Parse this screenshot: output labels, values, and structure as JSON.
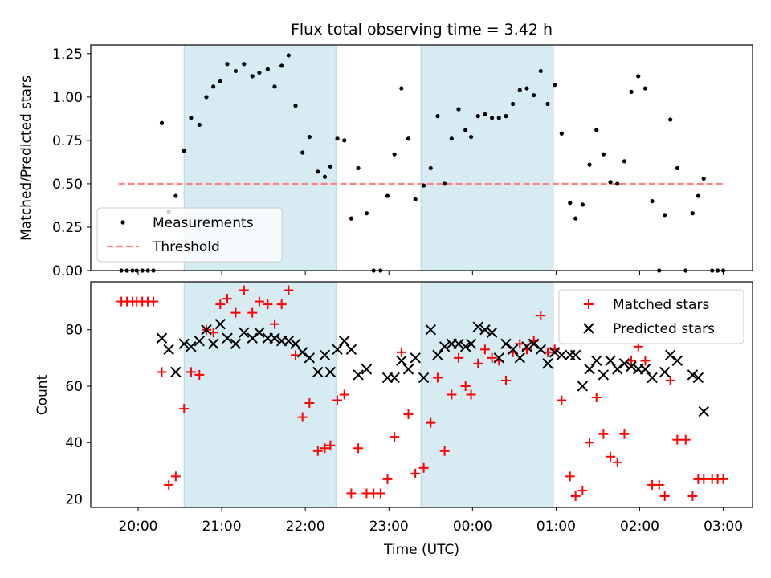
{
  "chart_data": [
    {
      "type": "scatter",
      "title": "Flux total observing time = 3.42 h",
      "xlabel": "",
      "ylabel": "Matched/Predicted stars",
      "xlim": [
        "19:26",
        "03:21"
      ],
      "ylim": [
        0,
        1.3
      ],
      "yticks": [
        "0.00",
        "0.25",
        "0.50",
        "0.75",
        "1.00",
        "1.25"
      ],
      "grid": false,
      "legend_position": "lower-left",
      "shaded_intervals": [
        [
          "20:33",
          "22:22"
        ],
        [
          "23:23",
          "00:58"
        ]
      ],
      "series": [
        {
          "name": "Measurements",
          "marker": "dot",
          "color": "#000000",
          "points": [
            [
              "19:48",
              0.0
            ],
            [
              "19:52",
              0.0
            ],
            [
              "19:56",
              0.0
            ],
            [
              "19:59",
              0.0
            ],
            [
              "20:03",
              0.0
            ],
            [
              "20:07",
              0.0
            ],
            [
              "20:11",
              0.0
            ],
            [
              "20:17",
              0.85
            ],
            [
              "20:22",
              0.34
            ],
            [
              "20:27",
              0.43
            ],
            [
              "20:33",
              0.69
            ],
            [
              "20:38",
              0.88
            ],
            [
              "20:44",
              0.84
            ],
            [
              "20:49",
              1.0
            ],
            [
              "20:54",
              1.06
            ],
            [
              "20:59",
              1.09
            ],
            [
              "21:04",
              1.19
            ],
            [
              "21:10",
              1.15
            ],
            [
              "21:16",
              1.19
            ],
            [
              "21:22",
              1.12
            ],
            [
              "21:27",
              1.14
            ],
            [
              "21:33",
              1.16
            ],
            [
              "21:38",
              1.06
            ],
            [
              "21:43",
              1.18
            ],
            [
              "21:48",
              1.24
            ],
            [
              "21:53",
              0.95
            ],
            [
              "21:58",
              0.68
            ],
            [
              "22:03",
              0.77
            ],
            [
              "22:09",
              0.57
            ],
            [
              "22:14",
              0.54
            ],
            [
              "22:18",
              0.6
            ],
            [
              "22:23",
              0.76
            ],
            [
              "22:28",
              0.75
            ],
            [
              "22:33",
              0.3
            ],
            [
              "22:38",
              0.59
            ],
            [
              "22:44",
              0.33
            ],
            [
              "22:49",
              0.0
            ],
            [
              "22:54",
              0.0
            ],
            [
              "22:59",
              0.43
            ],
            [
              "23:04",
              0.67
            ],
            [
              "23:09",
              1.05
            ],
            [
              "23:14",
              0.76
            ],
            [
              "23:19",
              0.41
            ],
            [
              "23:25",
              0.49
            ],
            [
              "23:30",
              0.59
            ],
            [
              "23:35",
              0.89
            ],
            [
              "23:40",
              0.5
            ],
            [
              "23:45",
              0.76
            ],
            [
              "23:50",
              0.93
            ],
            [
              "23:55",
              0.81
            ],
            [
              "23:59",
              0.77
            ],
            [
              "00:04",
              0.89
            ],
            [
              "00:09",
              0.9
            ],
            [
              "00:14",
              0.88
            ],
            [
              "00:19",
              0.88
            ],
            [
              "00:24",
              0.89
            ],
            [
              "00:29",
              0.96
            ],
            [
              "00:34",
              1.04
            ],
            [
              "00:39",
              1.05
            ],
            [
              "00:44",
              1.01
            ],
            [
              "00:49",
              1.15
            ],
            [
              "00:54",
              0.96
            ],
            [
              "00:59",
              1.07
            ],
            [
              "01:04",
              0.79
            ],
            [
              "01:10",
              0.39
            ],
            [
              "01:14",
              0.3
            ],
            [
              "01:19",
              0.38
            ],
            [
              "01:24",
              0.61
            ],
            [
              "01:29",
              0.81
            ],
            [
              "01:34",
              0.67
            ],
            [
              "01:39",
              0.51
            ],
            [
              "01:44",
              0.5
            ],
            [
              "01:49",
              0.63
            ],
            [
              "01:54",
              1.03
            ],
            [
              "01:59",
              1.12
            ],
            [
              "02:04",
              1.05
            ],
            [
              "02:09",
              0.4
            ],
            [
              "02:14",
              0.0
            ],
            [
              "02:18",
              0.32
            ],
            [
              "02:22",
              0.87
            ],
            [
              "02:27",
              0.59
            ],
            [
              "02:33",
              0.0
            ],
            [
              "02:38",
              0.33
            ],
            [
              "02:42",
              0.43
            ],
            [
              "02:46",
              0.53
            ],
            [
              "02:52",
              0.0
            ],
            [
              "02:56",
              0.0
            ],
            [
              "03:00",
              0.0
            ]
          ]
        },
        {
          "name": "Threshold",
          "type": "line",
          "style": "dashed",
          "color": "#ff8080",
          "points": [
            [
              "19:46",
              0.5
            ],
            [
              "03:00",
              0.5
            ]
          ]
        }
      ]
    },
    {
      "type": "scatter",
      "title": "",
      "xlabel": "Time (UTC)",
      "ylabel": "Count",
      "xlim": [
        "19:26",
        "03:21"
      ],
      "ylim": [
        17,
        97
      ],
      "xticks": [
        "20:00",
        "21:00",
        "22:00",
        "23:00",
        "00:00",
        "01:00",
        "02:00",
        "03:00"
      ],
      "yticks": [
        "20",
        "40",
        "60",
        "80"
      ],
      "grid": false,
      "legend_position": "top-right",
      "shaded_intervals": [
        [
          "20:33",
          "22:22"
        ],
        [
          "23:23",
          "00:58"
        ]
      ],
      "series": [
        {
          "name": "Matched stars",
          "marker": "plus",
          "color": "#ff0000",
          "points": [
            [
              "19:48",
              90
            ],
            [
              "19:52",
              90
            ],
            [
              "19:56",
              90
            ],
            [
              "19:59",
              90
            ],
            [
              "20:03",
              90
            ],
            [
              "20:07",
              90
            ],
            [
              "20:11",
              90
            ],
            [
              "20:17",
              65
            ],
            [
              "20:22",
              25
            ],
            [
              "20:27",
              28
            ],
            [
              "20:33",
              52
            ],
            [
              "20:38",
              65
            ],
            [
              "20:44",
              64
            ],
            [
              "20:49",
              80
            ],
            [
              "20:54",
              79
            ],
            [
              "20:59",
              89
            ],
            [
              "21:04",
              91
            ],
            [
              "21:10",
              86
            ],
            [
              "21:16",
              94
            ],
            [
              "21:22",
              86
            ],
            [
              "21:27",
              90
            ],
            [
              "21:33",
              89
            ],
            [
              "21:38",
              82
            ],
            [
              "21:43",
              89
            ],
            [
              "21:48",
              94
            ],
            [
              "21:53",
              71
            ],
            [
              "21:58",
              49
            ],
            [
              "22:03",
              54
            ],
            [
              "22:09",
              37
            ],
            [
              "22:14",
              38
            ],
            [
              "22:18",
              39
            ],
            [
              "22:23",
              55
            ],
            [
              "22:28",
              57
            ],
            [
              "22:33",
              22
            ],
            [
              "22:38",
              38
            ],
            [
              "22:44",
              22
            ],
            [
              "22:49",
              22
            ],
            [
              "22:54",
              22
            ],
            [
              "22:59",
              27
            ],
            [
              "23:04",
              42
            ],
            [
              "23:09",
              72
            ],
            [
              "23:14",
              50
            ],
            [
              "23:19",
              29
            ],
            [
              "23:25",
              31
            ],
            [
              "23:30",
              47
            ],
            [
              "23:35",
              63
            ],
            [
              "23:40",
              37
            ],
            [
              "23:45",
              57
            ],
            [
              "23:50",
              70
            ],
            [
              "23:55",
              60
            ],
            [
              "23:59",
              57
            ],
            [
              "00:04",
              68
            ],
            [
              "00:09",
              73
            ],
            [
              "00:14",
              70
            ],
            [
              "00:19",
              69
            ],
            [
              "00:24",
              62
            ],
            [
              "00:29",
              72
            ],
            [
              "00:34",
              75
            ],
            [
              "00:39",
              73
            ],
            [
              "00:44",
              76
            ],
            [
              "00:49",
              85
            ],
            [
              "00:54",
              72
            ],
            [
              "00:59",
              73
            ],
            [
              "01:04",
              55
            ],
            [
              "01:10",
              28
            ],
            [
              "01:14",
              21
            ],
            [
              "01:19",
              23
            ],
            [
              "01:24",
              40
            ],
            [
              "01:29",
              56
            ],
            [
              "01:34",
              43
            ],
            [
              "01:39",
              35
            ],
            [
              "01:44",
              33
            ],
            [
              "01:49",
              43
            ],
            [
              "01:54",
              69
            ],
            [
              "01:59",
              74
            ],
            [
              "02:04",
              69
            ],
            [
              "02:09",
              25
            ],
            [
              "02:14",
              25
            ],
            [
              "02:18",
              21
            ],
            [
              "02:22",
              62
            ],
            [
              "02:27",
              41
            ],
            [
              "02:33",
              41
            ],
            [
              "02:38",
              21
            ],
            [
              "02:42",
              27
            ],
            [
              "02:46",
              27
            ],
            [
              "02:52",
              27
            ],
            [
              "02:56",
              27
            ],
            [
              "03:00",
              27
            ]
          ]
        },
        {
          "name": "Predicted stars",
          "marker": "x",
          "color": "#000000",
          "points": [
            [
              "20:17",
              77
            ],
            [
              "20:22",
              73
            ],
            [
              "20:27",
              65
            ],
            [
              "20:33",
              75
            ],
            [
              "20:38",
              74
            ],
            [
              "20:44",
              76
            ],
            [
              "20:49",
              80
            ],
            [
              "20:54",
              75
            ],
            [
              "20:59",
              82
            ],
            [
              "21:04",
              77
            ],
            [
              "21:10",
              75
            ],
            [
              "21:16",
              79
            ],
            [
              "21:22",
              77
            ],
            [
              "21:27",
              79
            ],
            [
              "21:33",
              77
            ],
            [
              "21:38",
              77
            ],
            [
              "21:43",
              76
            ],
            [
              "21:48",
              76
            ],
            [
              "21:53",
              75
            ],
            [
              "21:58",
              72
            ],
            [
              "22:03",
              70
            ],
            [
              "22:09",
              65
            ],
            [
              "22:14",
              71
            ],
            [
              "22:18",
              65
            ],
            [
              "22:23",
              73
            ],
            [
              "22:28",
              76
            ],
            [
              "22:33",
              73
            ],
            [
              "22:38",
              64
            ],
            [
              "22:44",
              66
            ],
            [
              "22:59",
              63
            ],
            [
              "23:04",
              63
            ],
            [
              "23:09",
              69
            ],
            [
              "23:14",
              66
            ],
            [
              "23:19",
              70
            ],
            [
              "23:25",
              63
            ],
            [
              "23:30",
              80
            ],
            [
              "23:35",
              71
            ],
            [
              "23:40",
              74
            ],
            [
              "23:45",
              75
            ],
            [
              "23:50",
              75
            ],
            [
              "23:55",
              74
            ],
            [
              "23:59",
              75
            ],
            [
              "00:04",
              81
            ],
            [
              "00:09",
              80
            ],
            [
              "00:14",
              79
            ],
            [
              "00:19",
              70
            ],
            [
              "00:24",
              75
            ],
            [
              "00:29",
              73
            ],
            [
              "00:34",
              70
            ],
            [
              "00:39",
              74
            ],
            [
              "00:44",
              75
            ],
            [
              "00:49",
              73
            ],
            [
              "00:54",
              68
            ],
            [
              "00:59",
              72
            ],
            [
              "01:04",
              71
            ],
            [
              "01:10",
              71
            ],
            [
              "01:14",
              71
            ],
            [
              "01:19",
              60
            ],
            [
              "01:24",
              66
            ],
            [
              "01:29",
              69
            ],
            [
              "01:34",
              64
            ],
            [
              "01:39",
              69
            ],
            [
              "01:44",
              66
            ],
            [
              "01:49",
              68
            ],
            [
              "01:54",
              67
            ],
            [
              "01:59",
              66
            ],
            [
              "02:04",
              66
            ],
            [
              "02:09",
              63
            ],
            [
              "02:18",
              65
            ],
            [
              "02:22",
              71
            ],
            [
              "02:27",
              69
            ],
            [
              "02:38",
              64
            ],
            [
              "02:42",
              63
            ],
            [
              "02:46",
              51
            ]
          ]
        }
      ]
    }
  ]
}
